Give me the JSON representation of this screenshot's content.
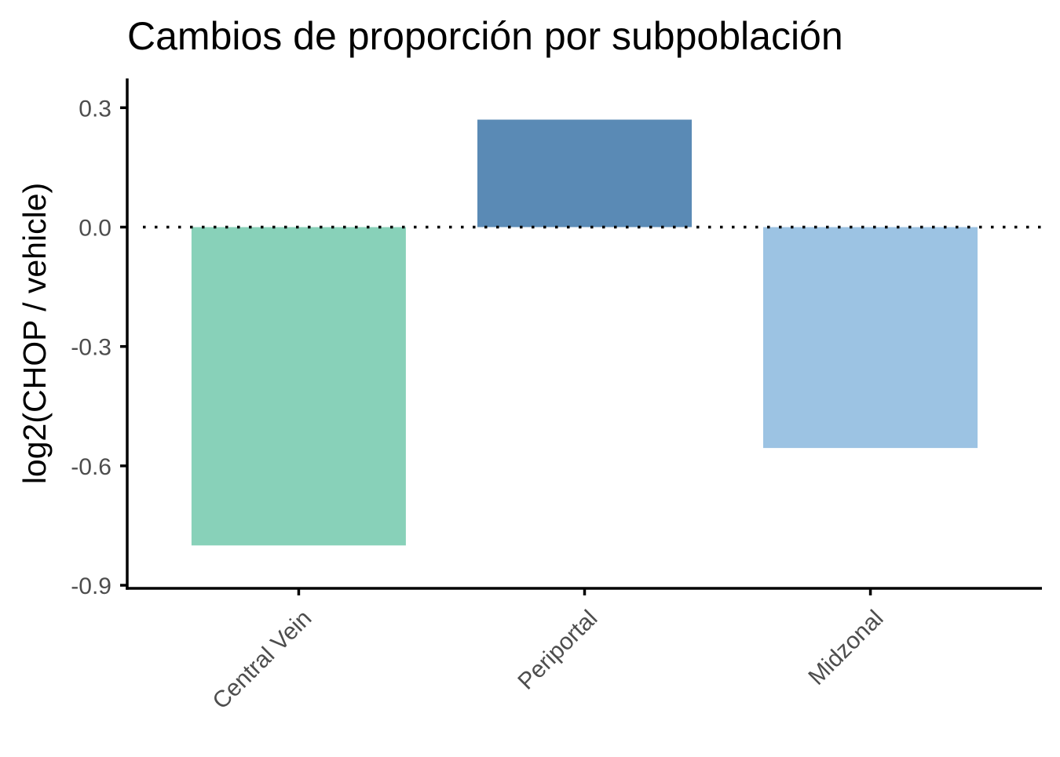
{
  "chart_data": {
    "type": "bar",
    "title": "Cambios de proporción por subpoblación",
    "xlabel": "",
    "ylabel": "log2(CHOP / vehicle)",
    "categories": [
      "Central Vein",
      "Periportal",
      "Midzonal"
    ],
    "values": [
      -0.8,
      0.27,
      -0.555
    ],
    "colors": [
      "#88d1b9",
      "#5a8ab5",
      "#9cc3e3"
    ],
    "ylim": [
      -0.9,
      0.3
    ],
    "yticks": [
      0.3,
      0.0,
      -0.3,
      -0.6,
      -0.9
    ],
    "ytick_labels": [
      "0.3",
      "0.0",
      "-0.3",
      "-0.6",
      "-0.9"
    ],
    "reference_line": {
      "y": 0,
      "style": "dotted"
    },
    "grid": false,
    "legend": "none"
  }
}
